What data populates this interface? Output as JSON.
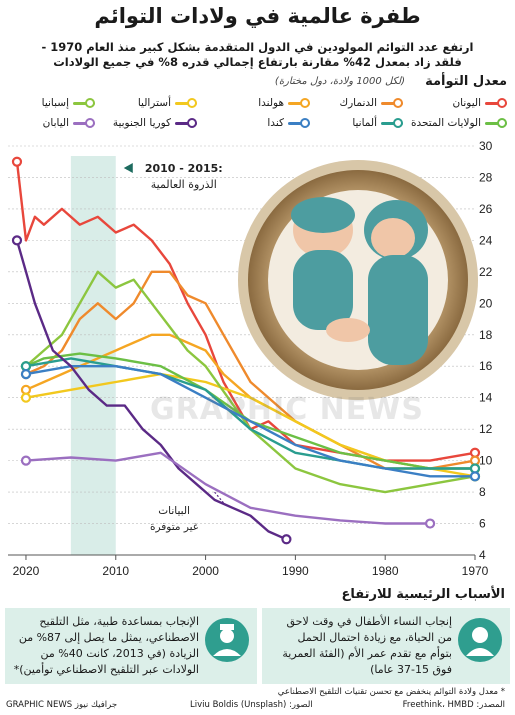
{
  "title": "طفرة عالمية في ولادات التوائم",
  "subtitle_line1": "ارتفع عدد التوائم المولودين في الدول المتقدمة بشكل كبير منذ العام 1970 -",
  "subtitle_line2": "فلقد زاد بمعدل 42% مقارنة بارتفاع إجمالي قدره 8% في جميع الولادات",
  "chart_heading": "معدل التوأمة",
  "chart_note": "(لكل 1000 ولادة، دول مختارة)",
  "legend": [
    {
      "label": "اليونان",
      "color": "#e8473c"
    },
    {
      "label": "الدنمارك",
      "color": "#ef8a2c"
    },
    {
      "label": "هولندا",
      "color": "#f5a623"
    },
    {
      "label": "أستراليا",
      "color": "#f2c81e"
    },
    {
      "label": "إسبانيا",
      "color": "#8cc63f"
    },
    {
      "label": "الولايات المتحدة",
      "color": "#6cbf45"
    },
    {
      "label": "ألمانيا",
      "color": "#2a9d8f"
    },
    {
      "label": "كندا",
      "color": "#3b7fc4"
    },
    {
      "label": "كوريا الجنوبية",
      "color": "#5b2a86"
    },
    {
      "label": "اليابان",
      "color": "#9b6fc0"
    }
  ],
  "peak_label": "2010 - 2015:",
  "peak_sub": "الذروة العالمية",
  "no_data_label_1": "البيانات",
  "no_data_label_2": "غير متوفرة",
  "watermark": "GRAPHIC NEWS",
  "causes_heading": "الأسباب الرئيسية للارتفاع",
  "cause_right": [
    "إنجاب النساء الأطفال في وقت لاحق",
    "من الحياة، مع زيادة احتمال الحمل",
    "بتوأم مع تقدم عمر الأم (الفئة العمرية",
    "فوق 15-37 عاما)"
  ],
  "cause_left": [
    "الإنجاب بمساعدة طبية، مثل التلقيح",
    "الاصطناعي، يمثل ما يصل إلى 87% من",
    "الزيادة (في 2013، كانت 40% من",
    "الولادات عبر التلقيح الاصطناعي توأمين)*"
  ],
  "footnote": "* معدل ولادة التوائم ينخفض مع تحسن تقنيات التلقيح الاصطناعي",
  "source": "المصدر: Freethink، HMBD",
  "photo_credit": "الصور: Liviu Boldis (Unsplash)",
  "brand": "GRAPHIC NEWS جرافيك نيوز",
  "chart_data": {
    "type": "line",
    "xlim": [
      1970,
      2022
    ],
    "ylim": [
      4,
      30
    ],
    "x_ticks": [
      1970,
      1980,
      1990,
      2000,
      2010,
      2020
    ],
    "y_ticks": [
      4,
      6,
      8,
      10,
      12,
      14,
      16,
      18,
      20,
      22,
      24,
      26,
      28,
      30
    ],
    "highlight_range": [
      2010,
      2015
    ],
    "series": [
      {
        "name": "اليونان",
        "color": "#e8473c",
        "x": [
          1970,
          1975,
          1980,
          1985,
          1990,
          1993,
          1995,
          1998,
          2000,
          2002,
          2004,
          2006,
          2008,
          2010,
          2012,
          2014,
          2016,
          2018,
          2019,
          2020,
          2021
        ],
        "y": [
          10.5,
          10,
          10,
          10.5,
          11,
          12.5,
          12,
          15,
          18,
          20,
          22.5,
          24,
          25,
          24.5,
          25.5,
          25,
          26,
          25,
          25.5,
          24,
          29
        ]
      },
      {
        "name": "الدنمارك",
        "color": "#ef8a2c",
        "x": [
          1970,
          1975,
          1980,
          1985,
          1990,
          1995,
          1998,
          2000,
          2002,
          2004,
          2006,
          2008,
          2010,
          2012,
          2014,
          2016,
          2018,
          2020
        ],
        "y": [
          10,
          9.5,
          9.5,
          11,
          12.5,
          15,
          18,
          20,
          20.5,
          22,
          22,
          20,
          19,
          20,
          19,
          17,
          16,
          15.5
        ]
      },
      {
        "name": "هولندا",
        "color": "#f5a623",
        "x": [
          1970,
          1975,
          1980,
          1985,
          1990,
          1995,
          1998,
          2000,
          2002,
          2004,
          2006,
          2008,
          2010,
          2012,
          2014,
          2016,
          2018,
          2020
        ],
        "y": [
          9.5,
          9.5,
          10,
          11,
          12.5,
          14,
          15.5,
          17,
          17.5,
          18,
          18,
          17.5,
          17,
          16.5,
          16,
          15.5,
          15,
          14.5
        ]
      },
      {
        "name": "أستراليا",
        "color": "#f2c81e",
        "x": [
          1970,
          1975,
          1980,
          1985,
          1990,
          1995,
          2000,
          2005,
          2010,
          2015,
          2020
        ],
        "y": [
          9,
          9.5,
          10,
          11,
          12.5,
          14,
          15,
          15.5,
          15,
          14.5,
          14
        ]
      },
      {
        "name": "إسبانيا",
        "color": "#8cc63f",
        "x": [
          1970,
          1975,
          1980,
          1985,
          1990,
          1995,
          2000,
          2002,
          2004,
          2006,
          2008,
          2010,
          2012,
          2014,
          2016,
          2018,
          2020
        ],
        "y": [
          9,
          8.5,
          8,
          8.5,
          9.5,
          12,
          16,
          17,
          18.5,
          20,
          21.5,
          21,
          22,
          20,
          18,
          17,
          16
        ]
      },
      {
        "name": "الولايات المتحدة",
        "color": "#6cbf45",
        "x": [
          1970,
          1975,
          1980,
          1985,
          1990,
          1995,
          2000,
          2005,
          2010,
          2014,
          2018,
          2020
        ],
        "y": [
          9.5,
          9.5,
          10,
          10.5,
          11.5,
          12.5,
          14.5,
          16,
          16.5,
          16.8,
          16.5,
          16
        ]
      },
      {
        "name": "ألمانيا",
        "color": "#2a9d8f",
        "x": [
          1970,
          1975,
          1980,
          1985,
          1990,
          1995,
          2000,
          2005,
          2010,
          2015,
          2020
        ],
        "y": [
          9.5,
          9.5,
          9.5,
          10,
          10.5,
          12,
          14.5,
          15.5,
          16,
          16.5,
          16
        ]
      },
      {
        "name": "كندا",
        "color": "#3b7fc4",
        "x": [
          1970,
          1975,
          1980,
          1985,
          1990,
          1995,
          2000,
          2005,
          2010,
          2015,
          2020
        ],
        "y": [
          9,
          9,
          9.5,
          10,
          11,
          12.5,
          14,
          15.5,
          16,
          16,
          15.5
        ]
      },
      {
        "name": "كوريا الجنوبية",
        "color": "#5b2a86",
        "x": [
          1991,
          1993,
          1995,
          1997,
          1999,
          2001,
          2003,
          2005,
          2007,
          2009,
          2011,
          2013,
          2015,
          2017,
          2019,
          2020,
          2021
        ],
        "y": [
          5,
          5.5,
          6.5,
          7,
          7.5,
          8.5,
          9.5,
          11,
          12,
          13.5,
          13.5,
          14.5,
          16,
          17,
          20,
          22,
          24
        ]
      },
      {
        "name": "اليابان",
        "color": "#9b6fc0",
        "x": [
          1975,
          1980,
          1985,
          1990,
          1995,
          2000,
          2005,
          2010,
          2015,
          2020
        ],
        "y": [
          6,
          6,
          6.2,
          6.5,
          7,
          8.5,
          10.5,
          10,
          10.2,
          10
        ]
      }
    ]
  }
}
